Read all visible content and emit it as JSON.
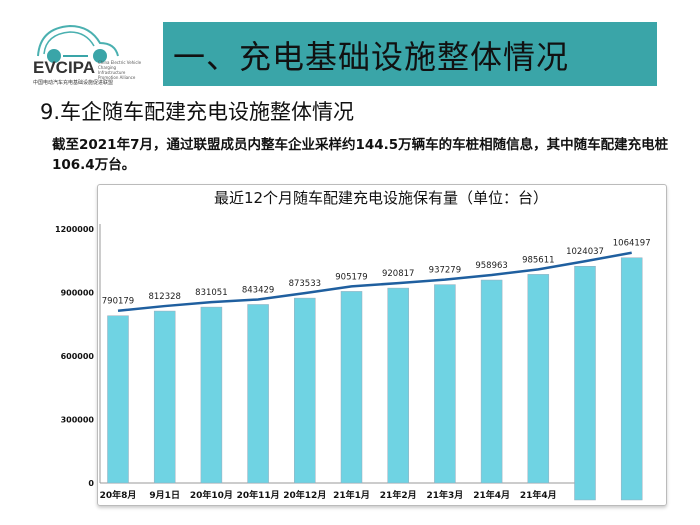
{
  "logo": {
    "name": "EVCIPA",
    "english": "China Electric Vehicle Charging Infrastructure Promotion Alliance",
    "chinese": "中国电动汽车充电基础设施促进联盟"
  },
  "header": {
    "title": "一、充电基础设施整体情况"
  },
  "section": {
    "title": "9.车企随车配建充电设施整体情况",
    "description": "截至2021年7月，通过联盟成员内整车企业采样约144.5万辆车的车桩相随信息，其中随车配建充电桩106.4万台。"
  },
  "colors": {
    "banner": "#3aa5a8",
    "bar": "#6fd3e3",
    "line": "#1f5f9f"
  },
  "chart_data": {
    "type": "bar",
    "title": "最近12个月随车配建充电设施保有量（单位：台）",
    "categories": [
      "20年8月",
      "9月1日",
      "20年10月",
      "20年11月",
      "20年12月",
      "21年1月",
      "21年2月",
      "21年3月",
      "21年4月",
      "21年4月",
      "",
      ""
    ],
    "values": [
      790179,
      812328,
      831051,
      843429,
      873533,
      905179,
      920817,
      937279,
      958963,
      985611,
      1024037,
      1064197
    ],
    "yticks": [
      0,
      300000,
      600000,
      900000,
      1200000
    ],
    "ylim": [
      0,
      1200000
    ],
    "trend_line": true,
    "xlabel": "",
    "ylabel": ""
  }
}
